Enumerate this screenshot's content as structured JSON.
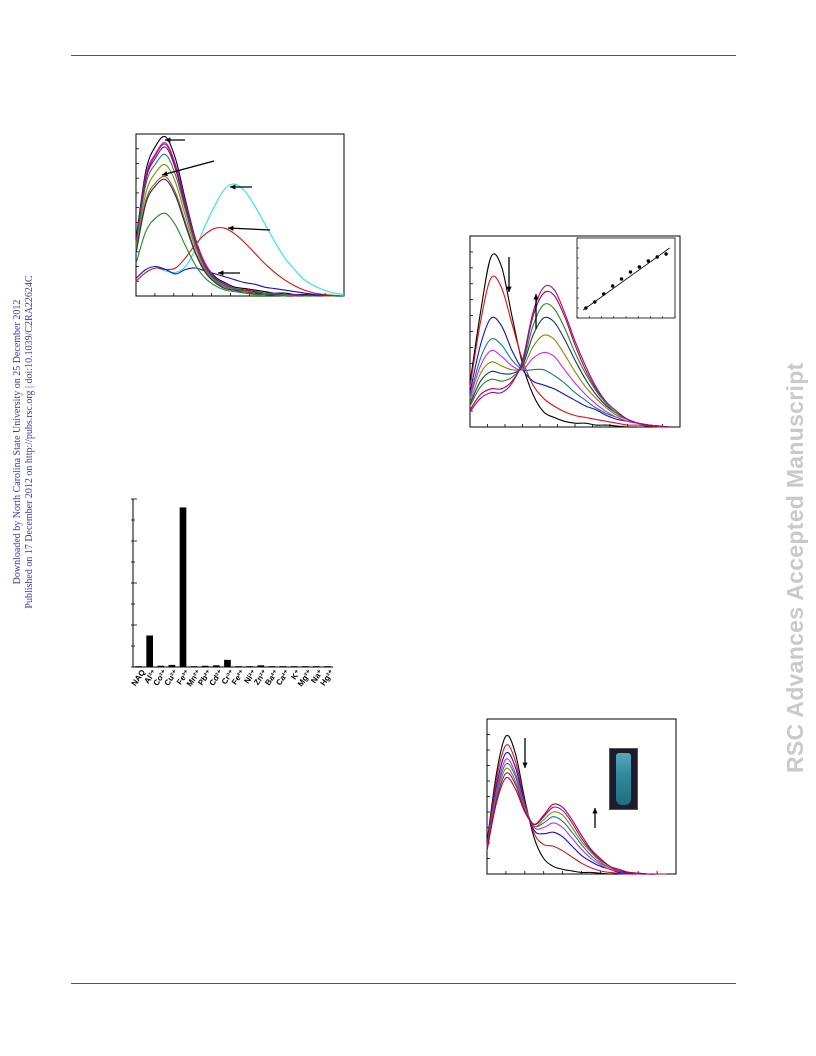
{
  "header": {},
  "side_note": {
    "line1": "Downloaded by North Carolina State University on 25 December 2012",
    "line2": "Published on 17 December 2012 on http://pubs.rsc.org | doi:10.1039/C2RA22624C"
  },
  "watermark": "RSC Advances Accepted Manuscript",
  "colors": {
    "black": "#000000",
    "red": "#e01010",
    "cyan": "#20e8f0",
    "blue": "#1010d0",
    "green": "#208a20",
    "orange": "#c85000",
    "magenta": "#e020e0",
    "purple": "#8a10a0",
    "teal": "#108080",
    "olive": "#8a8a00",
    "crimson": "#b00040",
    "navy": "#103080"
  },
  "chart_data": [
    {
      "type": "line",
      "panel": "emission-spectra-metal-ions",
      "x": [
        0,
        1,
        2,
        3,
        4,
        5,
        6,
        7,
        8,
        9,
        10,
        11,
        12,
        13,
        14,
        15,
        16,
        17,
        18,
        19,
        20,
        21
      ],
      "xlim": [
        0,
        21
      ],
      "ylim": [
        0,
        11
      ],
      "grid": false,
      "series": [
        {
          "color": "black",
          "values": [
            3.8,
            8.5,
            10.2,
            10.8,
            9.3,
            6.5,
            3.9,
            2.2,
            1.3,
            0.9,
            0.6,
            0.5,
            0.4,
            0.3,
            0.2,
            0.2,
            0.1,
            0.1,
            0.05,
            0.05,
            0.0,
            0.0
          ]
        },
        {
          "color": "cyan",
          "values": [
            1.0,
            1.6,
            1.9,
            1.7,
            1.6,
            2.0,
            3.2,
            4.8,
            6.2,
            7.3,
            7.6,
            7.1,
            6.1,
            4.9,
            3.7,
            2.6,
            1.8,
            1.1,
            0.7,
            0.4,
            0.2,
            0.1
          ]
        },
        {
          "color": "red",
          "values": [
            1.0,
            1.6,
            1.9,
            1.8,
            1.9,
            2.6,
            3.5,
            4.2,
            4.6,
            4.6,
            4.2,
            3.6,
            2.9,
            2.2,
            1.6,
            1.1,
            0.7,
            0.4,
            0.2,
            0.1,
            0.05,
            0.0
          ]
        },
        {
          "color": "blue",
          "values": [
            1.2,
            1.8,
            2.0,
            1.8,
            1.5,
            1.8,
            1.9,
            1.7,
            1.5,
            1.3,
            1.1,
            0.9,
            0.8,
            0.6,
            0.5,
            0.4,
            0.3,
            0.2,
            0.1,
            0.05,
            0.0,
            0.0
          ]
        },
        {
          "color": "magenta",
          "values": [
            3.6,
            8.2,
            9.7,
            10.4,
            8.9,
            6.3,
            3.8,
            2.2,
            1.2,
            0.8,
            0.5,
            0.4,
            0.3,
            0.2,
            0.2,
            0.1,
            0.1,
            0.05,
            0.0,
            0.0,
            0.0,
            0.0
          ]
        },
        {
          "color": "purple",
          "values": [
            3.6,
            8.0,
            9.6,
            10.3,
            8.8,
            6.2,
            3.7,
            2.1,
            1.2,
            0.8,
            0.5,
            0.4,
            0.3,
            0.2,
            0.2,
            0.1,
            0.1,
            0.05,
            0.0,
            0.0,
            0.0,
            0.0
          ]
        },
        {
          "color": "crimson",
          "values": [
            3.5,
            7.9,
            9.4,
            10.1,
            8.6,
            6.0,
            3.6,
            2.0,
            1.1,
            0.7,
            0.5,
            0.4,
            0.3,
            0.2,
            0.1,
            0.1,
            0.05,
            0.0,
            0.0,
            0.0,
            0.0,
            0.0
          ]
        },
        {
          "color": "teal",
          "values": [
            3.4,
            7.6,
            9.0,
            9.6,
            8.2,
            5.8,
            3.5,
            1.9,
            1.1,
            0.7,
            0.5,
            0.3,
            0.2,
            0.2,
            0.1,
            0.1,
            0.0,
            0.0,
            0.0,
            0.0,
            0.0,
            0.0
          ]
        },
        {
          "color": "olive",
          "values": [
            3.2,
            7.0,
            8.4,
            8.9,
            7.7,
            5.4,
            3.3,
            1.8,
            1.0,
            0.6,
            0.4,
            0.3,
            0.2,
            0.1,
            0.1,
            0.05,
            0.0,
            0.0,
            0.0,
            0.0,
            0.0,
            0.0
          ]
        },
        {
          "color": "orange",
          "values": [
            3.0,
            6.5,
            7.7,
            8.1,
            7.0,
            5.0,
            3.0,
            1.7,
            0.9,
            0.6,
            0.4,
            0.3,
            0.2,
            0.1,
            0.1,
            0.0,
            0.0,
            0.0,
            0.0,
            0.0,
            0.0,
            0.0
          ]
        },
        {
          "color": "navy",
          "values": [
            2.9,
            6.3,
            7.5,
            7.9,
            6.8,
            4.8,
            2.9,
            1.6,
            0.9,
            0.5,
            0.4,
            0.2,
            0.2,
            0.1,
            0.1,
            0.0,
            0.0,
            0.0,
            0.0,
            0.0,
            0.0,
            0.0
          ]
        },
        {
          "color": "green",
          "values": [
            2.2,
            4.4,
            5.3,
            5.6,
            4.8,
            3.4,
            2.1,
            1.2,
            0.7,
            0.4,
            0.3,
            0.2,
            0.1,
            0.1,
            0.05,
            0.0,
            0.0,
            0.0,
            0.0,
            0.0,
            0.0,
            0.0
          ]
        }
      ]
    },
    {
      "type": "line",
      "panel": "titration-spectra",
      "x": [
        0,
        1,
        2,
        3,
        4,
        5,
        6,
        7,
        8,
        9,
        10,
        11,
        12,
        13,
        14,
        15,
        16,
        17,
        18,
        19
      ],
      "xlim": [
        0,
        20
      ],
      "ylim": [
        0,
        10
      ],
      "grid": false,
      "series": [
        {
          "color": "black",
          "values": [
            2.3,
            6.0,
            8.9,
            8.4,
            5.8,
            3.3,
            1.7,
            0.8,
            0.5,
            0.3,
            0.2,
            0.2,
            0.1,
            0.1,
            0.05,
            0.0,
            0.0,
            0.0,
            0.0,
            0.0
          ]
        },
        {
          "color": "red",
          "values": [
            2.1,
            5.5,
            7.8,
            7.3,
            5.4,
            3.5,
            2.2,
            1.5,
            1.1,
            0.8,
            0.6,
            0.5,
            0.4,
            0.3,
            0.2,
            0.1,
            0.1,
            0.05,
            0.0,
            0.0
          ]
        },
        {
          "color": "blue",
          "values": [
            1.8,
            4.3,
            5.7,
            5.3,
            4.0,
            3.0,
            2.4,
            2.2,
            2.0,
            1.7,
            1.4,
            1.1,
            0.9,
            0.6,
            0.4,
            0.3,
            0.2,
            0.1,
            0.05,
            0.0
          ]
        },
        {
          "color": "teal",
          "values": [
            1.6,
            3.6,
            4.6,
            4.3,
            3.5,
            3.0,
            3.0,
            3.0,
            2.7,
            2.3,
            1.8,
            1.4,
            1.0,
            0.7,
            0.5,
            0.3,
            0.2,
            0.1,
            0.05,
            0.0
          ]
        },
        {
          "color": "magenta",
          "values": [
            1.5,
            3.2,
            4.0,
            3.7,
            3.2,
            3.0,
            3.6,
            3.9,
            3.7,
            3.0,
            2.3,
            1.7,
            1.2,
            0.8,
            0.5,
            0.3,
            0.2,
            0.1,
            0.05,
            0.0
          ]
        },
        {
          "color": "olive",
          "values": [
            1.3,
            2.8,
            3.4,
            3.2,
            3.0,
            3.1,
            4.2,
            4.8,
            4.6,
            3.8,
            2.9,
            2.1,
            1.5,
            1.0,
            0.6,
            0.4,
            0.2,
            0.1,
            0.05,
            0.0
          ]
        },
        {
          "color": "navy",
          "values": [
            1.2,
            2.4,
            2.9,
            2.8,
            2.8,
            3.2,
            4.8,
            5.7,
            5.5,
            4.6,
            3.5,
            2.5,
            1.7,
            1.1,
            0.7,
            0.4,
            0.2,
            0.1,
            0.05,
            0.0
          ]
        },
        {
          "color": "green",
          "values": [
            1.1,
            2.1,
            2.5,
            2.4,
            2.6,
            3.3,
            5.3,
            6.4,
            6.2,
            5.2,
            3.9,
            2.8,
            1.9,
            1.2,
            0.7,
            0.4,
            0.2,
            0.1,
            0.05,
            0.0
          ]
        },
        {
          "color": "crimson",
          "values": [
            0.9,
            1.7,
            2.0,
            2.0,
            2.4,
            3.4,
            5.8,
            7.0,
            6.9,
            5.8,
            4.3,
            3.0,
            2.0,
            1.3,
            0.8,
            0.4,
            0.2,
            0.1,
            0.05,
            0.0
          ]
        },
        {
          "color": "purple",
          "values": [
            0.8,
            1.5,
            1.8,
            1.8,
            2.3,
            3.5,
            6.0,
            7.3,
            7.2,
            6.0,
            4.5,
            3.2,
            2.1,
            1.3,
            0.8,
            0.4,
            0.2,
            0.1,
            0.05,
            0.0
          ]
        }
      ]
    },
    {
      "type": "scatter",
      "panel": "titration-inset-linear-fit",
      "x": [
        1,
        2,
        3,
        4,
        5,
        6,
        7,
        8,
        9,
        10
      ],
      "values": [
        1.0,
        1.6,
        2.4,
        3.2,
        3.9,
        4.6,
        5.1,
        5.7,
        6.1,
        6.4
      ],
      "fit_line": [
        0.8,
        7.0
      ],
      "xlim": [
        0,
        11
      ],
      "ylim": [
        0,
        8
      ],
      "grid": false
    },
    {
      "type": "bar",
      "panel": "selectivity-bar-chart",
      "categories": [
        "NAQ",
        "Al³⁺",
        "Co²⁺",
        "Cu²⁺",
        "Fe³⁺",
        "Mn²⁺",
        "Pb²⁺",
        "Cd²⁺",
        "Cr³⁺",
        "Fe²⁺",
        "Ni²⁺",
        "Zn²⁺",
        "Ba²⁺",
        "Ca²⁺",
        "K⁺",
        "Mg²⁺",
        "Na⁺",
        "Hg²⁺"
      ],
      "values": [
        0.2,
        7.5,
        0.3,
        0.5,
        38.0,
        0.2,
        0.3,
        0.4,
        1.7,
        0.2,
        0.2,
        0.4,
        0.2,
        0.2,
        0.2,
        0.2,
        0.2,
        0.2
      ],
      "ylim": [
        0,
        40
      ],
      "grid": false
    },
    {
      "type": "line",
      "panel": "time-dependent-spectra",
      "x": [
        0,
        1,
        2,
        3,
        4,
        5,
        6,
        7,
        8,
        9,
        10,
        11,
        12,
        13,
        14,
        15,
        16,
        17,
        18,
        19
      ],
      "xlim": [
        0,
        20
      ],
      "ylim": [
        0,
        10
      ],
      "grid": false,
      "series": [
        {
          "color": "black",
          "values": [
            2.0,
            6.5,
            8.9,
            7.8,
            4.8,
            2.3,
            1.0,
            0.5,
            0.3,
            0.2,
            0.1,
            0.1,
            0.05,
            0.0,
            0.0,
            0.0,
            0.0,
            0.0,
            0.0,
            0.0
          ]
        },
        {
          "color": "red",
          "values": [
            1.9,
            6.1,
            8.3,
            7.3,
            4.6,
            2.6,
            1.9,
            1.8,
            1.5,
            1.1,
            0.7,
            0.4,
            0.2,
            0.1,
            0.05,
            0.0,
            0.0,
            0.0,
            0.0,
            0.0
          ]
        },
        {
          "color": "blue",
          "values": [
            1.8,
            5.7,
            7.8,
            6.9,
            4.5,
            2.8,
            2.6,
            2.7,
            2.4,
            1.8,
            1.2,
            0.8,
            0.5,
            0.3,
            0.1,
            0.05,
            0.0,
            0.0,
            0.0,
            0.0
          ]
        },
        {
          "color": "magenta",
          "values": [
            1.7,
            5.4,
            7.4,
            6.5,
            4.4,
            3.0,
            3.0,
            3.3,
            3.0,
            2.3,
            1.6,
            1.0,
            0.6,
            0.3,
            0.2,
            0.1,
            0.0,
            0.0,
            0.0,
            0.0
          ]
        },
        {
          "color": "teal",
          "values": [
            1.7,
            5.2,
            7.1,
            6.3,
            4.3,
            3.1,
            3.3,
            3.7,
            3.4,
            2.7,
            1.9,
            1.2,
            0.7,
            0.4,
            0.2,
            0.1,
            0.05,
            0.0,
            0.0,
            0.0
          ]
        },
        {
          "color": "olive",
          "values": [
            1.6,
            5.0,
            6.8,
            6.0,
            4.2,
            3.1,
            3.5,
            4.0,
            3.8,
            3.0,
            2.1,
            1.4,
            0.8,
            0.4,
            0.2,
            0.1,
            0.05,
            0.0,
            0.0,
            0.0
          ]
        },
        {
          "color": "purple",
          "values": [
            1.6,
            4.8,
            6.5,
            5.8,
            4.1,
            3.2,
            3.7,
            4.3,
            4.1,
            3.3,
            2.3,
            1.5,
            0.9,
            0.5,
            0.2,
            0.1,
            0.05,
            0.0,
            0.0,
            0.0
          ]
        },
        {
          "color": "crimson",
          "values": [
            1.5,
            4.6,
            6.2,
            5.5,
            4.0,
            3.2,
            3.8,
            4.5,
            4.3,
            3.5,
            2.5,
            1.6,
            1.0,
            0.5,
            0.3,
            0.1,
            0.05,
            0.0,
            0.0,
            0.0
          ]
        }
      ]
    }
  ]
}
